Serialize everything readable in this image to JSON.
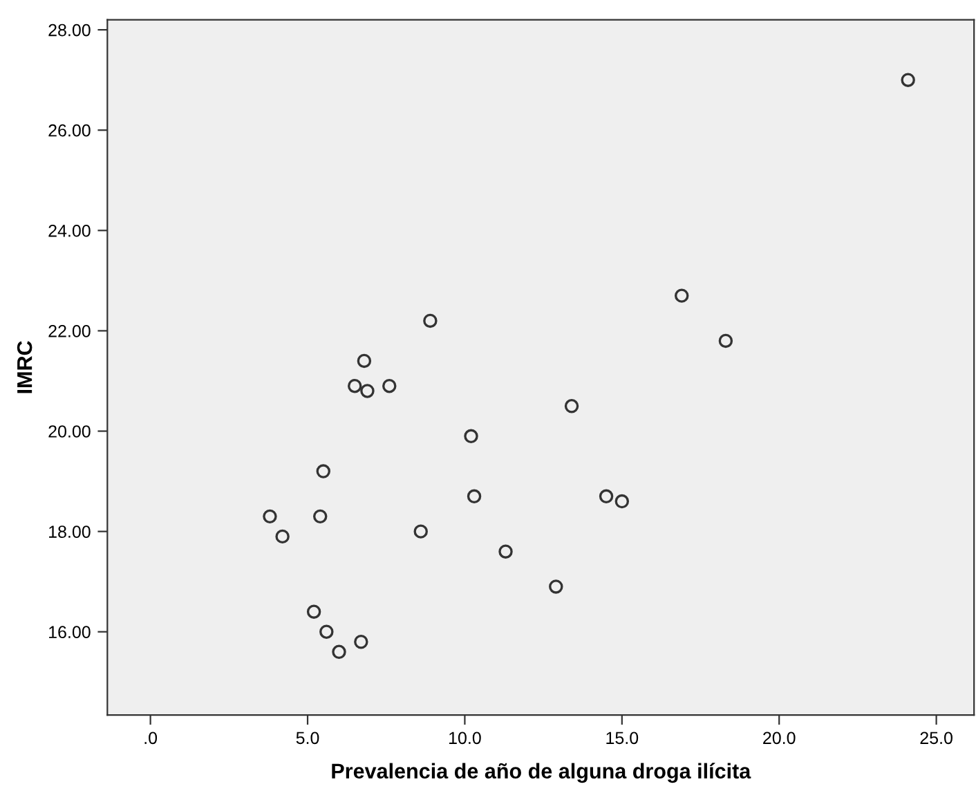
{
  "chart_data": {
    "type": "scatter",
    "xlabel": "Prevalencia de año de alguna droga ilícita",
    "ylabel": "IMRC",
    "x": [
      24.1,
      16.9,
      18.3,
      8.9,
      6.8,
      6.5,
      6.9,
      7.6,
      13.4,
      10.2,
      5.5,
      10.3,
      14.5,
      15.0,
      3.8,
      5.4,
      4.2,
      8.6,
      11.3,
      12.9,
      5.2,
      5.6,
      6.7,
      6.0
    ],
    "values": [
      27.0,
      22.7,
      21.8,
      22.2,
      21.4,
      20.9,
      20.8,
      20.9,
      20.5,
      19.9,
      19.2,
      18.7,
      18.7,
      18.6,
      18.3,
      18.3,
      17.9,
      18.0,
      17.6,
      16.9,
      16.4,
      16.0,
      15.8,
      15.6
    ],
    "color": "#333333",
    "marker": "circle",
    "grid": false,
    "xlim": [
      -1.37,
      26.2
    ],
    "ylim": [
      14.34,
      28.2
    ],
    "xticks": [
      {
        "value": 0,
        "label": ".0"
      },
      {
        "value": 5,
        "label": "5.0"
      },
      {
        "value": 10,
        "label": "10.0"
      },
      {
        "value": 15,
        "label": "15.0"
      },
      {
        "value": 20,
        "label": "20.0"
      },
      {
        "value": 25,
        "label": "25.0"
      }
    ],
    "yticks": [
      {
        "value": 16,
        "label": "16.00"
      },
      {
        "value": 18,
        "label": "18.00"
      },
      {
        "value": 20,
        "label": "20.00"
      },
      {
        "value": 22,
        "label": "22.00"
      },
      {
        "value": 24,
        "label": "24.00"
      },
      {
        "value": 26,
        "label": "26.00"
      },
      {
        "value": 28,
        "label": "28.00"
      }
    ]
  }
}
